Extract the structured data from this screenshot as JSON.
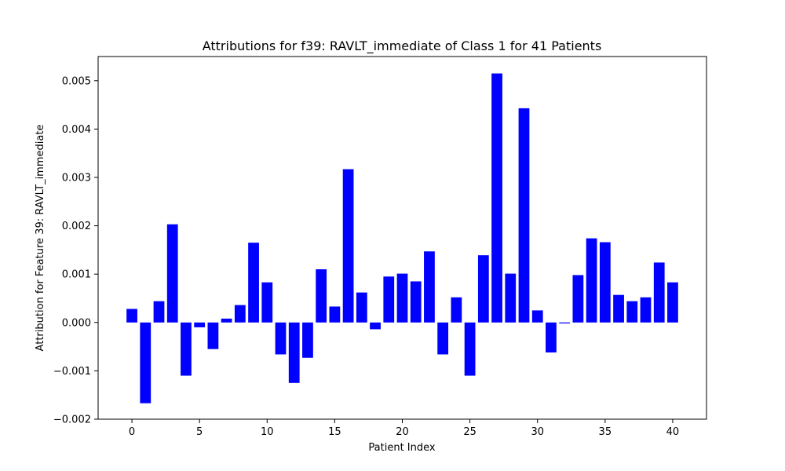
{
  "chart_data": {
    "type": "bar",
    "title": "Attributions for f39: RAVLT_immediate of Class 1 for 41 Patients",
    "xlabel": "Patient Index",
    "ylabel": "Attribution for Feature 39: RAVLT_immediate",
    "x": [
      0,
      1,
      2,
      3,
      4,
      5,
      6,
      7,
      8,
      9,
      10,
      11,
      12,
      13,
      14,
      15,
      16,
      17,
      18,
      19,
      20,
      21,
      22,
      23,
      24,
      25,
      26,
      27,
      28,
      29,
      30,
      31,
      32,
      33,
      34,
      35,
      36,
      37,
      38,
      39,
      40
    ],
    "values": [
      0.00028,
      -0.00167,
      0.00044,
      0.00203,
      -0.0011,
      -0.0001,
      -0.00055,
      8e-05,
      0.00036,
      0.00165,
      0.00083,
      -0.00066,
      -0.00125,
      -0.00073,
      0.0011,
      0.00033,
      0.00317,
      0.00062,
      -0.00014,
      0.00095,
      0.00101,
      0.00085,
      0.00147,
      -0.00066,
      0.00052,
      -0.0011,
      0.00139,
      0.00515,
      0.00101,
      0.00443,
      0.00025,
      -0.00062,
      -2e-05,
      0.00098,
      0.00174,
      0.00166,
      0.00057,
      0.00044,
      0.00052,
      0.00124,
      0.00083
    ],
    "xlim": [
      -2.5,
      42.5
    ],
    "ylim": [
      -0.002,
      0.0055
    ],
    "x_ticks": [
      0,
      5,
      10,
      15,
      20,
      25,
      30,
      35,
      40
    ],
    "x_tick_labels": [
      "0",
      "5",
      "10",
      "15",
      "20",
      "25",
      "30",
      "35",
      "40"
    ],
    "y_ticks": [
      -0.002,
      -0.001,
      0.0,
      0.001,
      0.002,
      0.003,
      0.004,
      0.005
    ],
    "y_tick_labels": [
      "−0.002",
      "−0.001",
      "0.000",
      "0.001",
      "0.002",
      "0.003",
      "0.004",
      "0.005"
    ],
    "bar_color": "#0000ff",
    "grid": false,
    "legend": "none"
  }
}
